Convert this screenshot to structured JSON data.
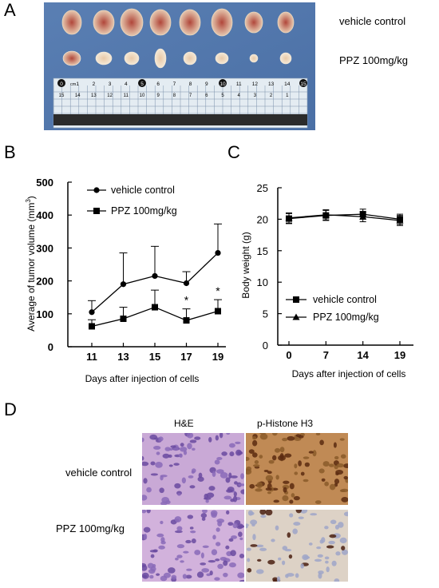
{
  "panels": {
    "a": "A",
    "b": "B",
    "c": "C",
    "d": "D"
  },
  "photo": {
    "row_labels": [
      "vehicle control",
      "PPZ 100mg/kg"
    ],
    "ruler_numbers": [
      "0",
      "1",
      "2",
      "3",
      "4",
      "5",
      "6",
      "7",
      "8",
      "9",
      "10",
      "11",
      "12",
      "13",
      "14",
      "15"
    ],
    "ruler_reverse": [
      "15",
      "14",
      "13",
      "12",
      "11",
      "10",
      "9",
      "8",
      "7",
      "6",
      "5",
      "4",
      "3",
      "2",
      "1"
    ],
    "ruler_unit": "cm"
  },
  "chart_data": [
    {
      "type": "line",
      "xlabel": "Days after injection of cells",
      "ylabel": "Average of tumor volume (mm",
      "ylabel_sup": "3",
      "ylabel_end": ")",
      "categories": [
        "11",
        "13",
        "15",
        "17",
        "19"
      ],
      "ylim": [
        0,
        500
      ],
      "yticks": [
        "0",
        "100",
        "200",
        "300",
        "400",
        "500"
      ],
      "series": [
        {
          "name": "vehicle control",
          "marker": "circle",
          "values": [
            105,
            190,
            215,
            193,
            285
          ],
          "err": [
            35,
            95,
            90,
            35,
            88
          ]
        },
        {
          "name": "PPZ 100mg/kg",
          "marker": "square",
          "values": [
            62,
            85,
            120,
            80,
            108
          ],
          "err": [
            20,
            35,
            52,
            35,
            35
          ]
        }
      ],
      "annotations": [
        {
          "x": "17",
          "text": "*"
        },
        {
          "x": "19",
          "text": "*"
        }
      ],
      "legend": "top-left"
    },
    {
      "type": "line",
      "xlabel": "Days after injection of cells",
      "ylabel": "Body weight (g)",
      "categories": [
        "0",
        "7",
        "14",
        "19"
      ],
      "ylim": [
        0,
        25
      ],
      "yticks": [
        "0",
        "5",
        "10",
        "15",
        "20",
        "25"
      ],
      "series": [
        {
          "name": "vehicle control",
          "marker": "square",
          "values": [
            20.1,
            20.6,
            20.8,
            20.0
          ],
          "err": [
            0.8,
            0.8,
            0.8,
            0.8
          ]
        },
        {
          "name": "PPZ 100mg/kg",
          "marker": "triangle",
          "values": [
            20.2,
            20.7,
            20.4,
            19.8
          ],
          "err": [
            0.8,
            0.8,
            0.8,
            0.8
          ]
        }
      ],
      "legend": "bottom-center"
    }
  ],
  "micro": {
    "col_headers": [
      "H&E",
      "p-Histone H3"
    ],
    "row_labels": [
      "vehicle control",
      "PPZ 100mg/kg"
    ]
  }
}
